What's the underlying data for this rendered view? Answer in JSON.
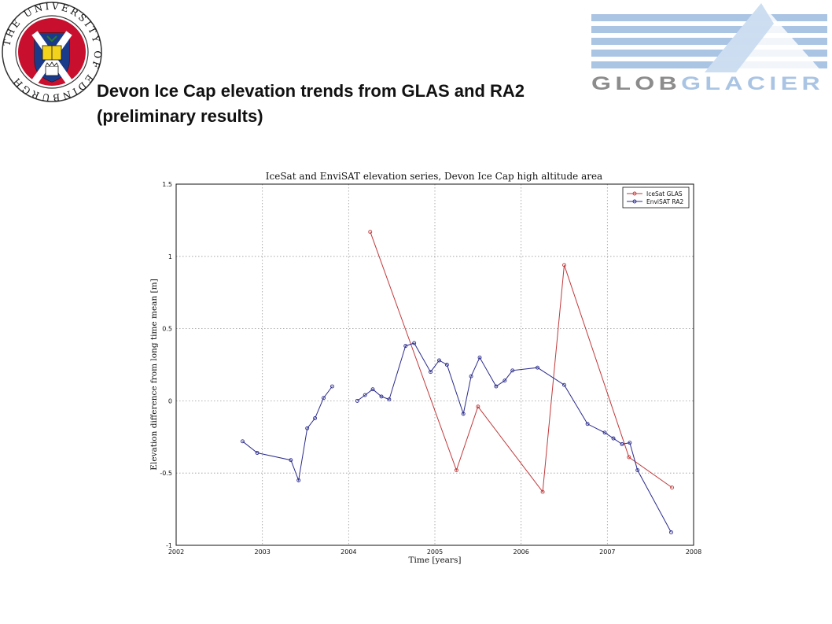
{
  "slide": {
    "title": "Devon Ice Cap elevation trends from GLAS and RA2 (preliminary results)"
  },
  "header": {
    "university_seal_text": "THE UNIVERSITY OF EDINBURGH",
    "project_logo_text": "GLOBGLACIER"
  },
  "colors": {
    "glas": "#c0393b",
    "ra2": "#2a2a8c",
    "grid": "#9a9a9a",
    "seal_red": "#c8102e",
    "seal_blue": "#1a3a8a",
    "logo_blue": "#aac4e4",
    "logo_grey": "#8c8c8c"
  },
  "chart_data": {
    "type": "line",
    "title": "IceSat and EnviSAT elevation series, Devon Ice Cap high altitude area",
    "xlabel": "Time [years]",
    "ylabel": "Elevation difference from long time mean [m]",
    "xlim": [
      2002,
      2008
    ],
    "ylim": [
      -1,
      1.5
    ],
    "xticks": [
      2002,
      2003,
      2004,
      2005,
      2006,
      2007,
      2008
    ],
    "yticks": [
      -1,
      -0.5,
      0,
      0.5,
      1,
      1.5
    ],
    "grid": true,
    "legend_position": "top-right",
    "series": [
      {
        "name": "IceSat GLAS",
        "color": "#c0393b",
        "segments": [
          [
            [
              2004.25,
              1.17
            ],
            [
              2005.25,
              -0.48
            ],
            [
              2005.5,
              -0.04
            ],
            [
              2006.25,
              -0.63
            ],
            [
              2006.5,
              0.94
            ],
            [
              2007.25,
              -0.39
            ],
            [
              2007.75,
              -0.6
            ]
          ]
        ]
      },
      {
        "name": "EnviSAT RA2",
        "color": "#2a2a8c",
        "segments": [
          [
            [
              2002.77,
              -0.28
            ],
            [
              2002.94,
              -0.36
            ],
            [
              2003.33,
              -0.41
            ],
            [
              2003.42,
              -0.55
            ],
            [
              2003.52,
              -0.19
            ],
            [
              2003.61,
              -0.12
            ],
            [
              2003.71,
              0.02
            ],
            [
              2003.81,
              0.1
            ]
          ],
          [
            [
              2004.1,
              0.0
            ],
            [
              2004.19,
              0.04
            ],
            [
              2004.28,
              0.08
            ],
            [
              2004.38,
              0.03
            ],
            [
              2004.47,
              0.01
            ],
            [
              2004.66,
              0.38
            ],
            [
              2004.76,
              0.4
            ],
            [
              2004.95,
              0.2
            ],
            [
              2005.05,
              0.28
            ],
            [
              2005.14,
              0.25
            ],
            [
              2005.33,
              -0.09
            ],
            [
              2005.42,
              0.17
            ],
            [
              2005.52,
              0.3
            ],
            [
              2005.71,
              0.1
            ],
            [
              2005.81,
              0.14
            ],
            [
              2005.9,
              0.21
            ],
            [
              2006.19,
              0.23
            ],
            [
              2006.5,
              0.11
            ],
            [
              2006.77,
              -0.16
            ],
            [
              2006.97,
              -0.22
            ],
            [
              2007.07,
              -0.26
            ],
            [
              2007.17,
              -0.3
            ],
            [
              2007.26,
              -0.29
            ],
            [
              2007.35,
              -0.48
            ],
            [
              2007.74,
              -0.91
            ]
          ]
        ]
      }
    ]
  }
}
